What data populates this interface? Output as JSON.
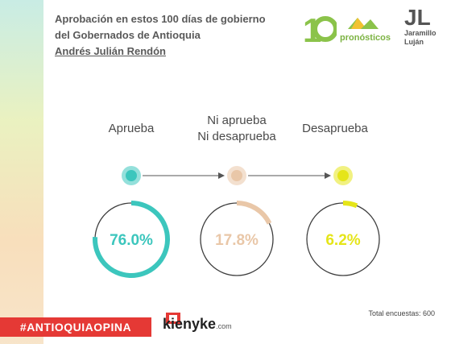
{
  "title": {
    "line1": "Aprobación en estos 100 días de gobierno",
    "line2": "del Gobernados de Antioquia",
    "line3": "Andrés Julián Rendón"
  },
  "logos": {
    "pronosticos": "pronósticos",
    "jl_mark": "JL",
    "jl_name1": "Jaramillo",
    "jl_name2": "Luján"
  },
  "chart_data": {
    "type": "pie",
    "categories": [
      "Aprueba",
      "Ni aprueba Ni desaprueba",
      "Desaprueba"
    ],
    "labels": [
      {
        "line1": "Aprueba",
        "line2": ""
      },
      {
        "line1": "Ni aprueba",
        "line2": "Ni desaprueba"
      },
      {
        "line1": "Desaprueba",
        "line2": ""
      }
    ],
    "values": [
      76.0,
      17.8,
      6.2
    ],
    "value_labels": [
      "76.0%",
      "17.8%",
      "6.2%"
    ],
    "colors": [
      "#3cc6bd",
      "#e9c7a8",
      "#e5e519"
    ],
    "unit": "%"
  },
  "footer": {
    "hashtag": "#ANTIOQUIAOPINA",
    "brand": "kienyke",
    "brand_suffix": ".com",
    "total": "Total encuestas: 600"
  }
}
